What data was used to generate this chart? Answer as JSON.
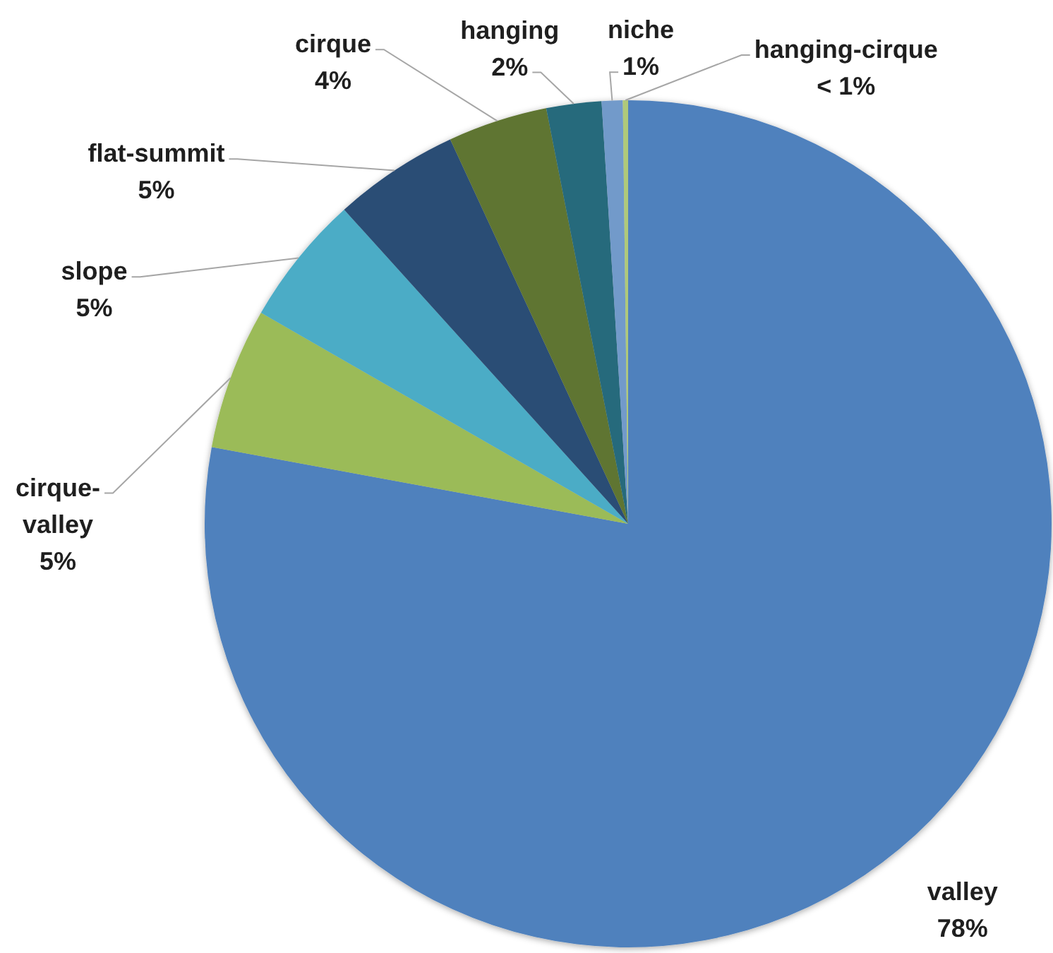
{
  "chart_data": {
    "type": "pie",
    "categories": [
      "valley",
      "cirque-valley",
      "slope",
      "flat-summit",
      "cirque",
      "hanging",
      "niche",
      "hanging-cirque"
    ],
    "values": [
      77.9,
      5.4,
      5.0,
      4.8,
      3.8,
      2.1,
      0.8,
      0.2
    ],
    "colors": [
      "#4f81bd",
      "#9bbb59",
      "#4bacc6",
      "#2c4d75",
      "#5f7530",
      "#276a7c",
      "#729aca",
      "#afc97a"
    ],
    "value_labels": [
      "78%",
      "5%",
      "5%",
      "5%",
      "4%",
      "2%",
      "1%",
      "< 1%"
    ]
  }
}
